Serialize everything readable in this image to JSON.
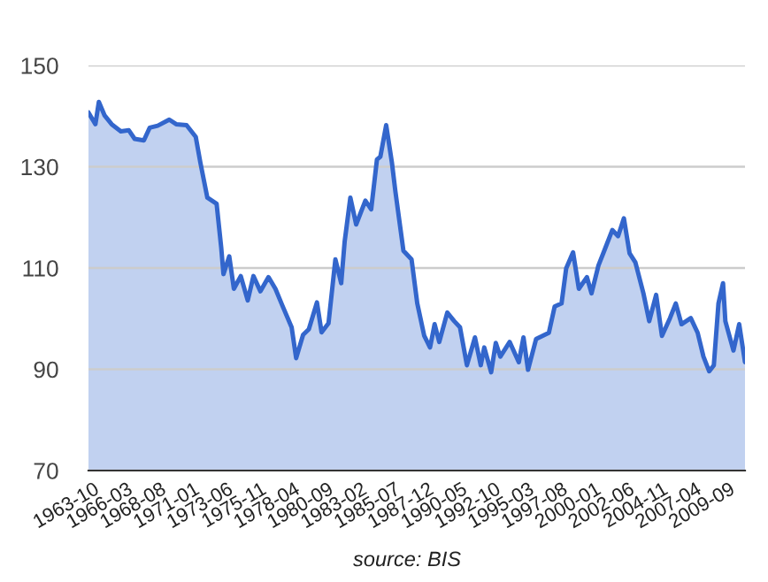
{
  "chart_data": {
    "type": "area",
    "annotations": [
      "source: BIS"
    ],
    "x": [
      "1963-06",
      "1963-12",
      "1964-03",
      "1964-08",
      "1965-02",
      "1965-10",
      "1966-05",
      "1966-10",
      "1967-06",
      "1967-11",
      "1968-06",
      "1969-04",
      "1969-10",
      "1970-07",
      "1971-03",
      "1971-07",
      "1972-01",
      "1972-09",
      "1973-01",
      "1973-03",
      "1973-08",
      "1973-12",
      "1974-06",
      "1974-12",
      "1975-05",
      "1975-11",
      "1976-06",
      "1976-12",
      "1977-06",
      "1978-02",
      "1978-06",
      "1978-12",
      "1979-05",
      "1979-12",
      "1980-04",
      "1980-10",
      "1981-04",
      "1981-09",
      "1981-12",
      "1982-05",
      "1982-10",
      "1983-06",
      "1983-11",
      "1984-04",
      "1984-07",
      "1984-12",
      "1985-05",
      "1985-08",
      "1986-03",
      "1986-10",
      "1987-03",
      "1987-09",
      "1988-02",
      "1988-06",
      "1988-10",
      "1989-05",
      "1989-11",
      "1990-04",
      "1990-10",
      "1991-05",
      "1991-10",
      "1992-01",
      "1992-07",
      "1992-11",
      "1993-03",
      "1993-11",
      "1994-07",
      "1994-11",
      "1995-03",
      "1995-10",
      "1996-09",
      "1997-02",
      "1997-08",
      "1997-12",
      "1998-06",
      "1998-11",
      "1999-06",
      "1999-10",
      "2000-04",
      "2000-09",
      "2001-04",
      "2001-09",
      "2002-02",
      "2002-07",
      "2002-12",
      "2003-07",
      "2003-12",
      "2004-06",
      "2004-11",
      "2005-06",
      "2005-11",
      "2006-04",
      "2006-12",
      "2007-06",
      "2007-11",
      "2008-04",
      "2008-08",
      "2008-12",
      "2009-04",
      "2009-06",
      "2010-01",
      "2010-06",
      "2010-11"
    ],
    "series": [
      {
        "color": "#3366cc",
        "values": [
          140.7,
          138.4,
          142.8,
          140.1,
          138.4,
          137.0,
          137.2,
          135.5,
          135.2,
          137.7,
          138.1,
          139.3,
          138.4,
          138.2,
          135.9,
          130.8,
          123.9,
          122.7,
          114.0,
          108.8,
          112.3,
          105.9,
          108.4,
          103.6,
          108.4,
          105.4,
          108.2,
          105.9,
          102.6,
          98.3,
          92.2,
          96.8,
          97.9,
          103.2,
          97.3,
          99.1,
          111.7,
          107.0,
          115.2,
          123.9,
          118.6,
          123.3,
          121.6,
          131.4,
          132.0,
          138.2,
          130.8,
          125.1,
          113.4,
          111.7,
          103.0,
          96.6,
          94.3,
          98.9,
          95.4,
          101.2,
          99.5,
          98.3,
          90.8,
          96.3,
          90.8,
          94.3,
          89.4,
          95.2,
          92.5,
          95.4,
          91.4,
          96.3,
          89.9,
          96.0,
          97.2,
          102.4,
          103.0,
          109.9,
          113.1,
          105.9,
          108.2,
          105.0,
          110.5,
          113.4,
          117.5,
          116.3,
          119.8,
          112.9,
          111.1,
          105.0,
          99.5,
          104.7,
          96.6,
          100.1,
          103.0,
          98.9,
          100.1,
          97.2,
          92.5,
          89.6,
          90.8,
          103.0,
          107.0,
          99.5,
          93.7,
          98.9,
          91.4
        ]
      }
    ],
    "xlim": [
      "1963-06",
      "2010-11"
    ],
    "xticks": [
      {
        "value": "1963-10",
        "label": "1963-10"
      },
      {
        "value": "1966-03",
        "label": "1966-03"
      },
      {
        "value": "1968-08",
        "label": "1968-08"
      },
      {
        "value": "1971-01",
        "label": "1971-01"
      },
      {
        "value": "1973-06",
        "label": "1973-06"
      },
      {
        "value": "1975-11",
        "label": "1975-11"
      },
      {
        "value": "1978-04",
        "label": "1978-04"
      },
      {
        "value": "1980-09",
        "label": "1980-09"
      },
      {
        "value": "1983-02",
        "label": "1983-02"
      },
      {
        "value": "1985-07",
        "label": "1985-07"
      },
      {
        "value": "1987-12",
        "label": "1987-12"
      },
      {
        "value": "1990-05",
        "label": "1990-05"
      },
      {
        "value": "1992-10",
        "label": "1992-10"
      },
      {
        "value": "1995-03",
        "label": "1995-03"
      },
      {
        "value": "1997-08",
        "label": "1997-08"
      },
      {
        "value": "2000-01",
        "label": "2000-01"
      },
      {
        "value": "2002-06",
        "label": "2002-06"
      },
      {
        "value": "2004-11",
        "label": "2004-11"
      },
      {
        "value": "2007-04",
        "label": "2007-04"
      },
      {
        "value": "2009-09",
        "label": "2009-09"
      }
    ],
    "ylim": [
      70,
      150
    ],
    "yticks": [
      70,
      90,
      110,
      130,
      150
    ],
    "grid": "y",
    "legend": false
  }
}
